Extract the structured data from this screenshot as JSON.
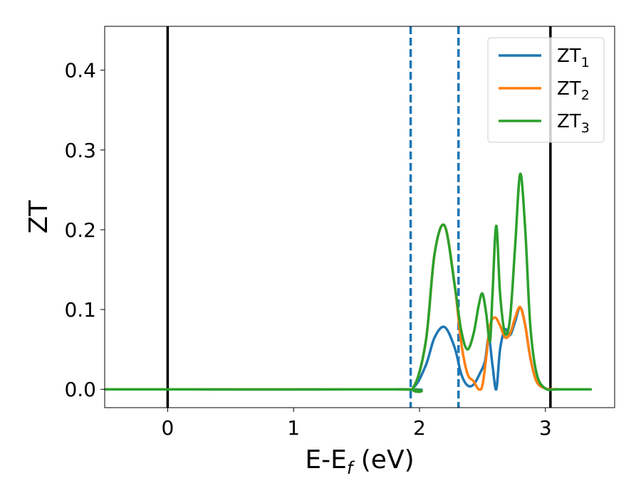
{
  "chart_data": {
    "type": "line",
    "title": "",
    "xlabel": {
      "main": "E-E",
      "sub": "f",
      "unit": " (eV)"
    },
    "ylabel": "ZT",
    "xlim": [
      -0.5,
      3.55
    ],
    "ylim": [
      -0.023,
      0.455
    ],
    "x_ticks": [
      0,
      1,
      2,
      3
    ],
    "x_tick_labels": [
      "0",
      "1",
      "2",
      "3"
    ],
    "y_ticks": [
      0.0,
      0.1,
      0.2,
      0.3,
      0.4
    ],
    "y_tick_labels": [
      "0.0",
      "0.1",
      "0.2",
      "0.3",
      "0.4"
    ],
    "grid": false,
    "legend_position": "top-right",
    "vertical_lines": [
      {
        "x": 0.0,
        "color": "#000000",
        "style": "solid"
      },
      {
        "x": 3.04,
        "color": "#000000",
        "style": "solid"
      },
      {
        "x": 1.93,
        "color": "#1f77b4",
        "style": "dashed"
      },
      {
        "x": 2.31,
        "color": "#1f77b4",
        "style": "dashed"
      }
    ],
    "series": [
      {
        "name": "ZT",
        "name_sub": "1",
        "color": "#1f77b4",
        "x": [
          -0.5,
          1.8,
          1.95,
          2.05,
          2.12,
          2.2,
          2.28,
          2.33,
          2.38,
          2.43,
          2.48,
          2.52,
          2.55,
          2.58,
          2.61,
          2.64,
          2.68,
          2.72,
          2.76,
          2.8,
          2.84,
          2.88,
          2.93,
          3.0,
          3.1,
          3.36
        ],
        "y": [
          0,
          0,
          0.002,
          0.03,
          0.065,
          0.078,
          0.052,
          0.02,
          0.005,
          0.006,
          0.02,
          0.035,
          0.065,
          0.03,
          0.0,
          0.05,
          0.075,
          0.068,
          0.085,
          0.103,
          0.08,
          0.04,
          0.01,
          0.001,
          0,
          0
        ]
      },
      {
        "name": "ZT",
        "name_sub": "2",
        "color": "#ff7f0e",
        "x": [
          -0.5,
          1.8,
          1.95,
          2.05,
          2.12,
          2.2,
          2.28,
          2.33,
          2.38,
          2.43,
          2.47,
          2.5,
          2.53,
          2.56,
          2.6,
          2.64,
          2.68,
          2.72,
          2.76,
          2.8,
          2.84,
          2.88,
          2.93,
          3.0,
          3.1,
          3.36
        ],
        "y": [
          0,
          0,
          0.002,
          0.06,
          0.17,
          0.205,
          0.13,
          0.06,
          0.02,
          0.01,
          0.0,
          0.005,
          0.04,
          0.08,
          0.09,
          0.08,
          0.065,
          0.07,
          0.09,
          0.103,
          0.08,
          0.04,
          0.01,
          0.001,
          0,
          0
        ]
      },
      {
        "name": "ZT",
        "name_sub": "3",
        "color": "#2ca02c",
        "x": [
          -0.5,
          1.8,
          1.95,
          2.05,
          2.12,
          2.2,
          2.28,
          2.33,
          2.38,
          2.43,
          2.47,
          2.5,
          2.53,
          2.56,
          2.58,
          2.61,
          2.64,
          2.68,
          2.72,
          2.76,
          2.8,
          2.84,
          2.88,
          2.93,
          3.0,
          3.1,
          3.36
        ],
        "y": [
          0,
          0,
          0.002,
          0.06,
          0.17,
          0.205,
          0.13,
          0.075,
          0.05,
          0.07,
          0.105,
          0.12,
          0.095,
          0.06,
          0.12,
          0.205,
          0.12,
          0.07,
          0.09,
          0.18,
          0.27,
          0.2,
          0.08,
          0.02,
          0.001,
          0,
          0
        ]
      }
    ]
  }
}
